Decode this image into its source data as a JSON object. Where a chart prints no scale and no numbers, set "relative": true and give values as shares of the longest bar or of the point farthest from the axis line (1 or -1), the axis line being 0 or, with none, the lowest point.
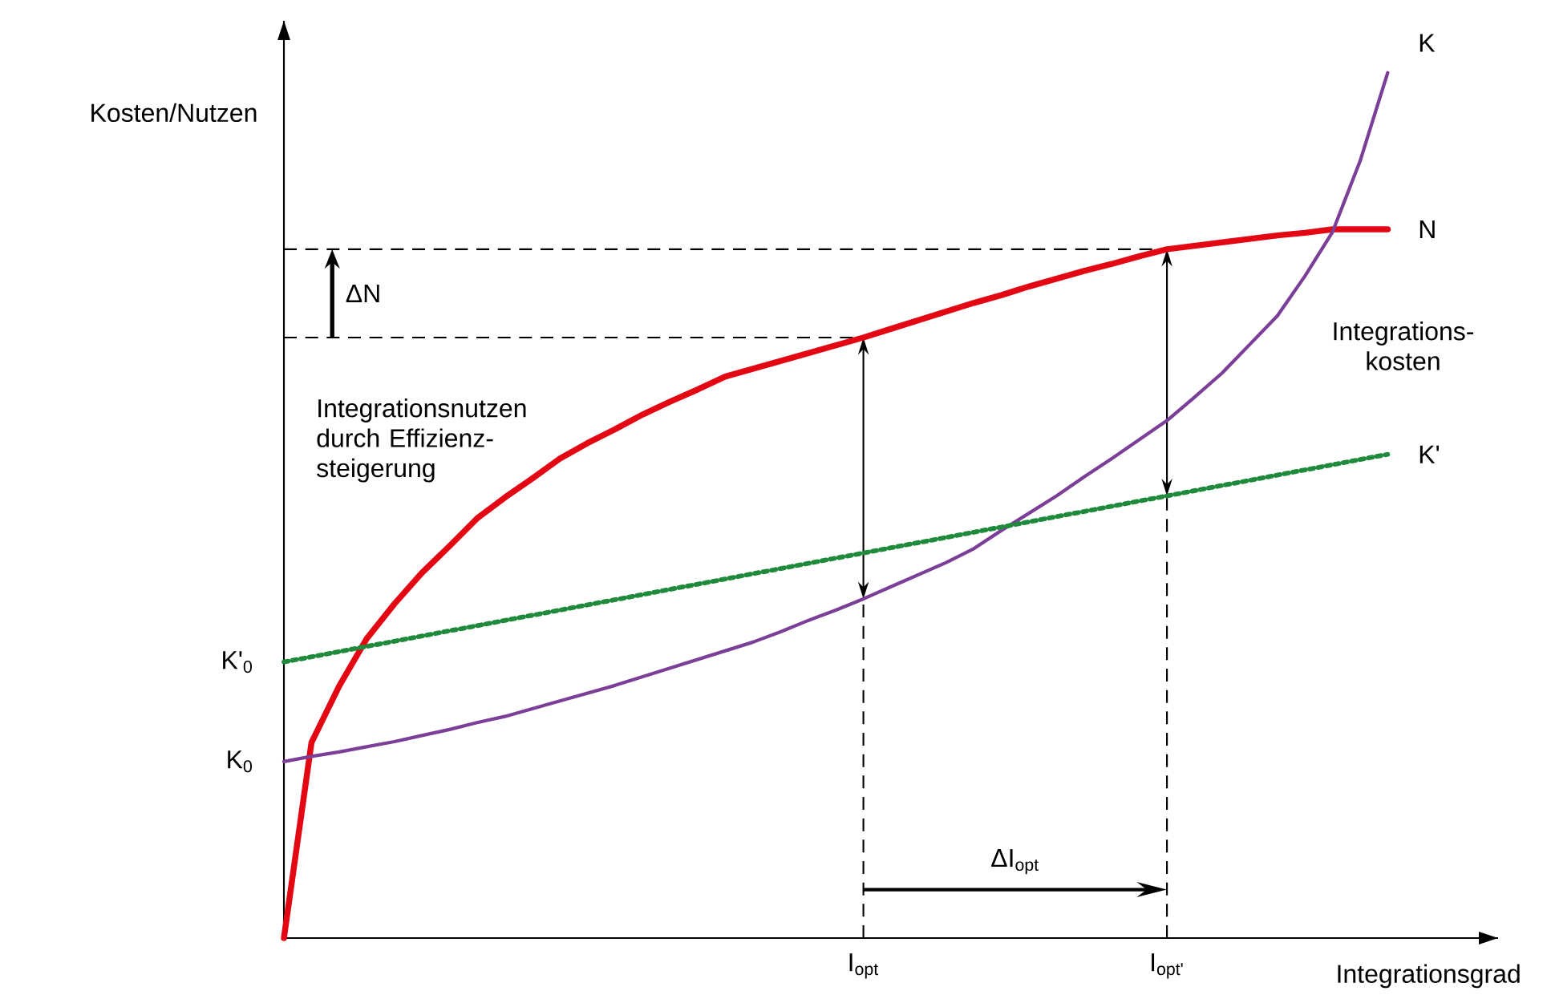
{
  "chart_data": {
    "type": "line",
    "relative": true,
    "xlabel": "Integrationsgrad",
    "ylabel": "Kosten/Nutzen",
    "categories": [
      null,
      null,
      null,
      null,
      null,
      null,
      null,
      null,
      null,
      null,
      null,
      null,
      null,
      null,
      null,
      null,
      null,
      null,
      null,
      null,
      null,
      "I$_{opt}$",
      null,
      null,
      null,
      null,
      null,
      null,
      null,
      null,
      null,
      null,
      "I$_{opt'}$",
      null,
      null,
      null,
      null,
      null,
      null,
      null,
      null
    ],
    "series": [
      {
        "name": "N",
        "color": "#e30613",
        "line_style": "solid",
        "values": [
          0,
          0.226,
          0.291,
          0.346,
          0.386,
          0.422,
          0.453,
          0.485,
          0.509,
          0.531,
          0.554,
          0.572,
          0.588,
          0.605,
          0.62,
          0.634,
          0.649,
          0.658,
          0.667,
          0.676,
          0.685,
          0.694,
          0.704,
          0.714,
          0.724,
          0.734,
          0.743,
          0.753,
          0.762,
          0.771,
          0.779,
          0.788,
          0.796,
          0.8,
          0.804,
          0.808,
          0.812,
          0.815,
          0.819,
          0.819,
          0.819
        ]
      },
      {
        "name": "K",
        "color": "#7b3f98",
        "line_style": "solid",
        "values": [
          0.204,
          0.21,
          0.215,
          0.221,
          0.227,
          0.234,
          0.241,
          0.249,
          0.256,
          0.265,
          0.274,
          0.283,
          0.292,
          0.302,
          0.312,
          0.322,
          0.332,
          0.342,
          0.354,
          0.367,
          0.379,
          0.392,
          0.406,
          0.42,
          0.434,
          0.45,
          0.471,
          0.491,
          0.511,
          0.533,
          0.554,
          0.576,
          0.598,
          0.625,
          0.653,
          0.686,
          0.719,
          0.765,
          0.816,
          0.898,
          1.0
        ]
      },
      {
        "name": "K'",
        "color": "#1f8a3c",
        "line_style": "dotted",
        "values": [
          0.319,
          0.325,
          0.331,
          0.337,
          0.343,
          0.349,
          0.355,
          0.361,
          0.367,
          0.373,
          0.379,
          0.385,
          0.391,
          0.397,
          0.403,
          0.409,
          0.415,
          0.421,
          0.427,
          0.433,
          0.439,
          0.445,
          0.451,
          0.457,
          0.463,
          0.469,
          0.475,
          0.481,
          0.487,
          0.493,
          0.499,
          0.505,
          0.511,
          0.517,
          0.523,
          0.529,
          0.535,
          0.541,
          0.547,
          0.553,
          0.559
        ]
      }
    ],
    "annotations": [
      "Integrationsnutzen durch Effizienz-steigerung",
      "Integrations-kosten",
      "ΔN",
      "ΔI$_{opt}$",
      "K$_{0}$",
      "K'$_{0}$"
    ]
  }
}
